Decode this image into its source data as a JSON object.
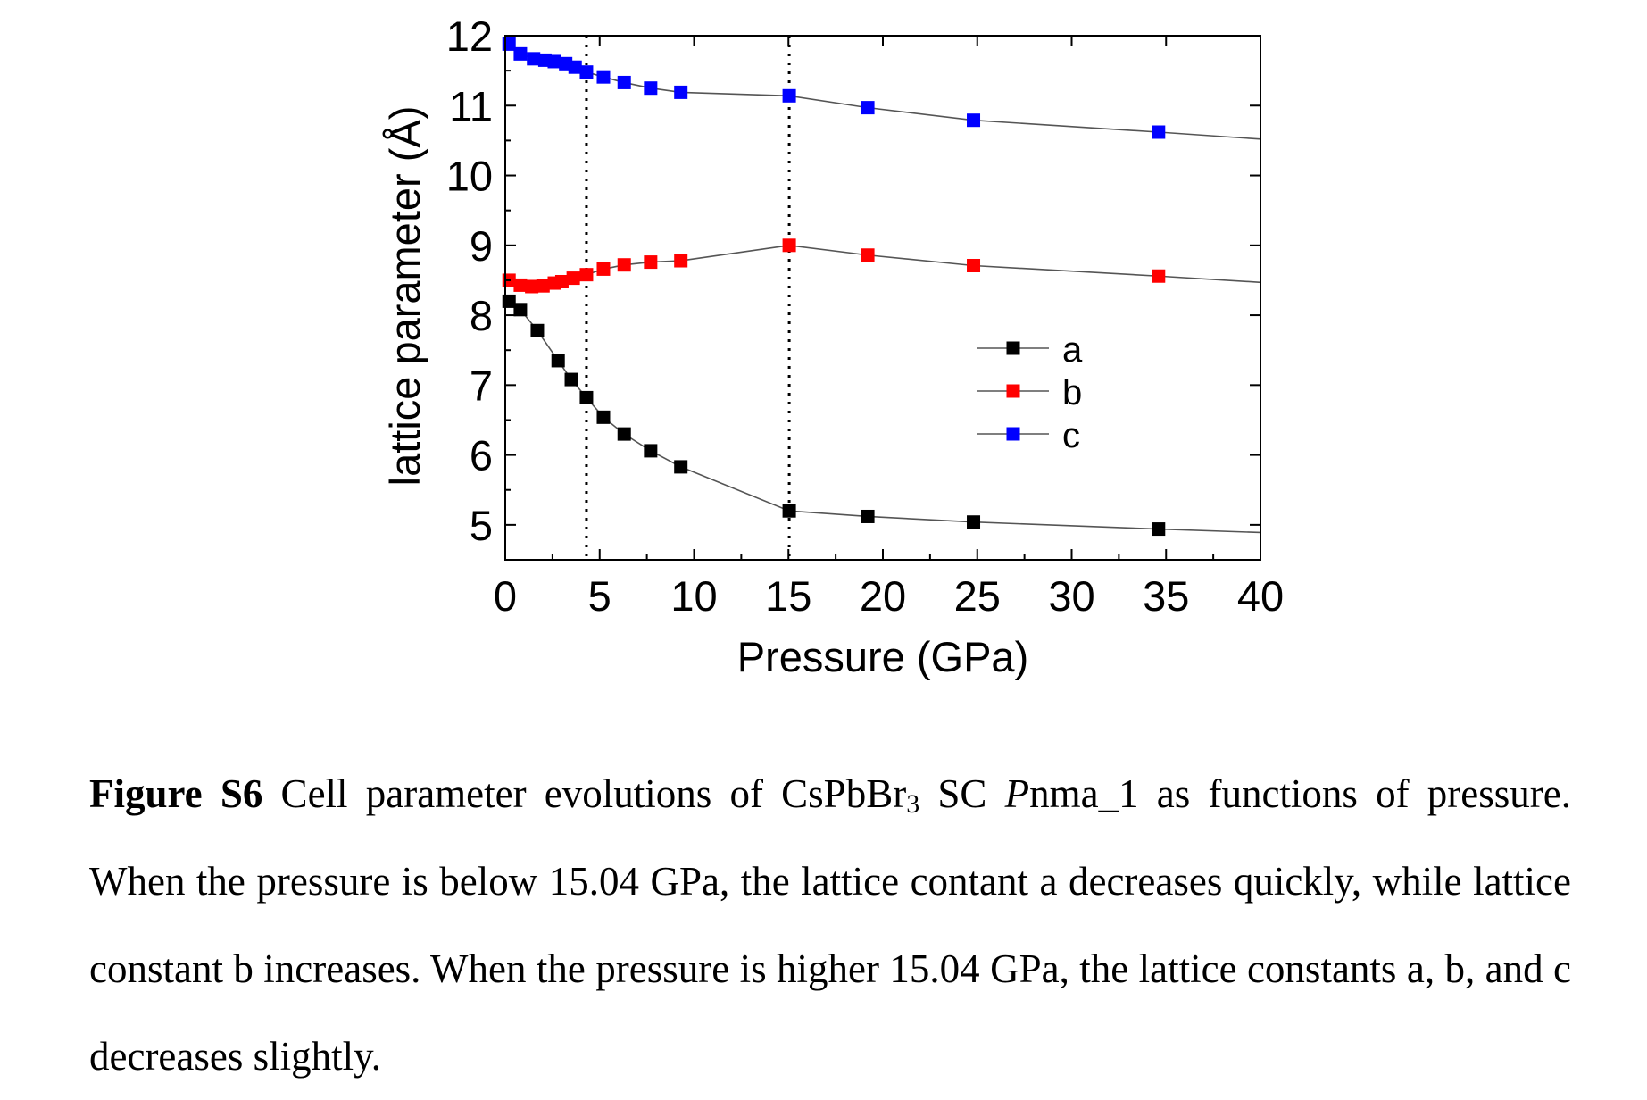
{
  "chart_data": {
    "type": "scatter",
    "xlabel": "Pressure (GPa)",
    "ylabel": "lattice parameter (Å)",
    "xlim": [
      0,
      40
    ],
    "ylim": [
      4.5,
      12
    ],
    "x_ticks": [
      0,
      5,
      10,
      15,
      20,
      25,
      30,
      35,
      40
    ],
    "y_ticks": [
      5,
      6,
      7,
      8,
      9,
      10,
      11,
      12
    ],
    "vlines": [
      4.3,
      15.04
    ],
    "legend_position": "right-middle",
    "grid": false,
    "series": [
      {
        "name": "a",
        "color": "#000000",
        "x": [
          0.2,
          0.8,
          1.7,
          2.8,
          3.5,
          4.3,
          5.2,
          6.3,
          7.7,
          9.3,
          15.04,
          19.2,
          24.8,
          34.6
        ],
        "y": [
          8.2,
          8.08,
          7.78,
          7.35,
          7.08,
          6.82,
          6.54,
          6.3,
          6.06,
          5.83,
          5.2,
          5.12,
          5.04,
          4.94
        ],
        "extend_to": [
          40,
          4.89
        ]
      },
      {
        "name": "b",
        "color": "#ff0000",
        "x": [
          0.2,
          0.8,
          1.4,
          2.0,
          2.6,
          3.0,
          3.6,
          4.3,
          5.2,
          6.3,
          7.7,
          9.3,
          15.04,
          19.2,
          24.8,
          34.6
        ],
        "y": [
          8.5,
          8.43,
          8.41,
          8.42,
          8.46,
          8.48,
          8.53,
          8.58,
          8.66,
          8.72,
          8.76,
          8.78,
          9.0,
          8.86,
          8.71,
          8.56
        ],
        "extend_to": [
          40,
          8.47
        ]
      },
      {
        "name": "c",
        "color": "#0000ff",
        "x": [
          0.2,
          0.8,
          1.5,
          2.1,
          2.6,
          3.2,
          3.7,
          4.3,
          5.2,
          6.3,
          7.7,
          9.3,
          15.04,
          19.2,
          24.8,
          34.6
        ],
        "y": [
          11.88,
          11.74,
          11.67,
          11.65,
          11.63,
          11.6,
          11.55,
          11.48,
          11.41,
          11.33,
          11.25,
          11.19,
          11.14,
          10.97,
          10.79,
          10.62
        ],
        "extend_to": [
          40,
          10.52
        ]
      }
    ]
  },
  "caption": {
    "label": "Figure S6",
    "text_1": " Cell parameter evolutions of CsPbBr",
    "subscript": "3",
    "text_2": " SC ",
    "italic": "P",
    "text_3": "nma_1 as functions of pressure. When the pressure is below 15.04 GPa, the lattice contant a decreases quickly, while lattice constant b increases. When the pressure is higher 15.04 GPa, the lattice constants a, b, and c decreases slightly."
  }
}
